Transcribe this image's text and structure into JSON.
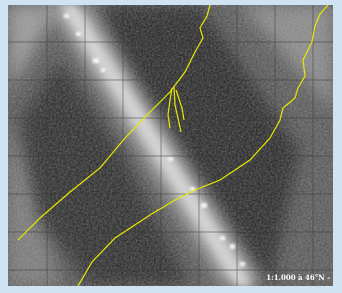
{
  "scale_label": "1:1.000 à 46°N -"
}
